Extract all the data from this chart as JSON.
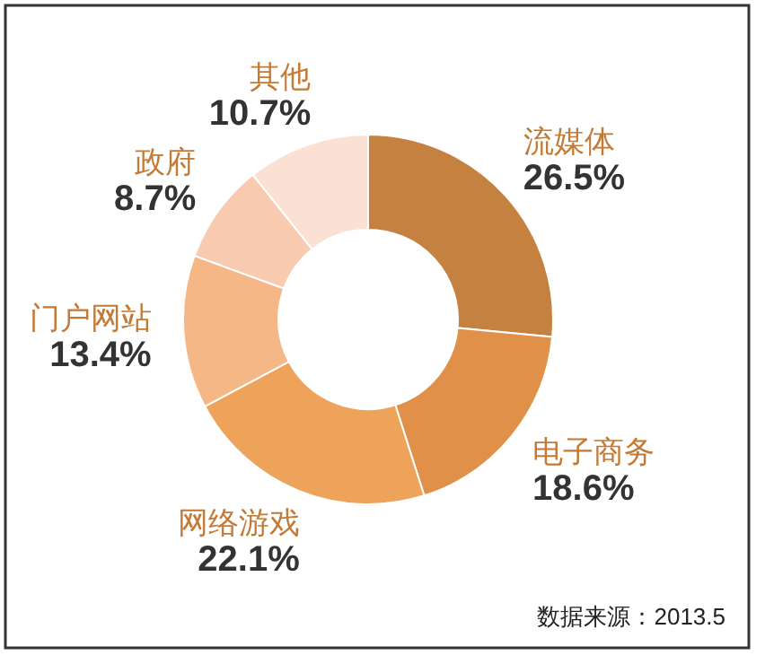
{
  "chart_data": {
    "type": "donut",
    "categories": [
      "流媒体",
      "电子商务",
      "网络游戏",
      "门户网站",
      "政府",
      "其他"
    ],
    "values": [
      26.5,
      18.6,
      22.1,
      13.4,
      8.7,
      10.7
    ],
    "value_labels": [
      "26.5%",
      "18.6%",
      "22.1%",
      "13.4%",
      "8.7%",
      "10.7%"
    ],
    "colors": [
      "#c4813f",
      "#e09049",
      "#eea35b",
      "#f4b785",
      "#f8cbb0",
      "#fbe1d4"
    ],
    "annotations": [
      "数据来源：2013.5"
    ]
  }
}
